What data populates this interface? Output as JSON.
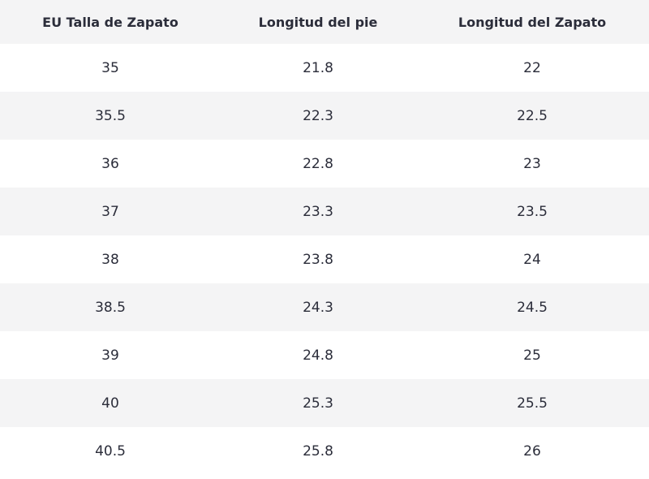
{
  "table": {
    "headers": [
      "EU Talla de Zapato",
      "Longitud del pie",
      "Longitud del Zapato"
    ],
    "rows": [
      [
        "35",
        "21.8",
        "22"
      ],
      [
        "35.5",
        "22.3",
        "22.5"
      ],
      [
        "36",
        "22.8",
        "23"
      ],
      [
        "37",
        "23.3",
        "23.5"
      ],
      [
        "38",
        "23.8",
        "24"
      ],
      [
        "38.5",
        "24.3",
        "24.5"
      ],
      [
        "39",
        "24.8",
        "25"
      ],
      [
        "40",
        "25.3",
        "25.5"
      ],
      [
        "40.5",
        "25.8",
        "26"
      ]
    ]
  }
}
